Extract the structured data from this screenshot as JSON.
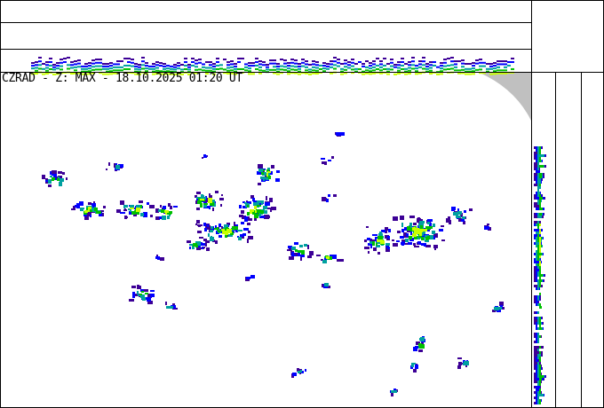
{
  "title": "CZRAD - Z: MAX - 18.10.2025 01:20 UT",
  "colors": {
    "level1": "#3c0096",
    "level2": "#0000ff",
    "level3": "#00a0a0",
    "level4": "#00c000",
    "level5": "#c8ff00",
    "level6": "#ffff00",
    "outside_range": "#c0c0c0"
  }
}
